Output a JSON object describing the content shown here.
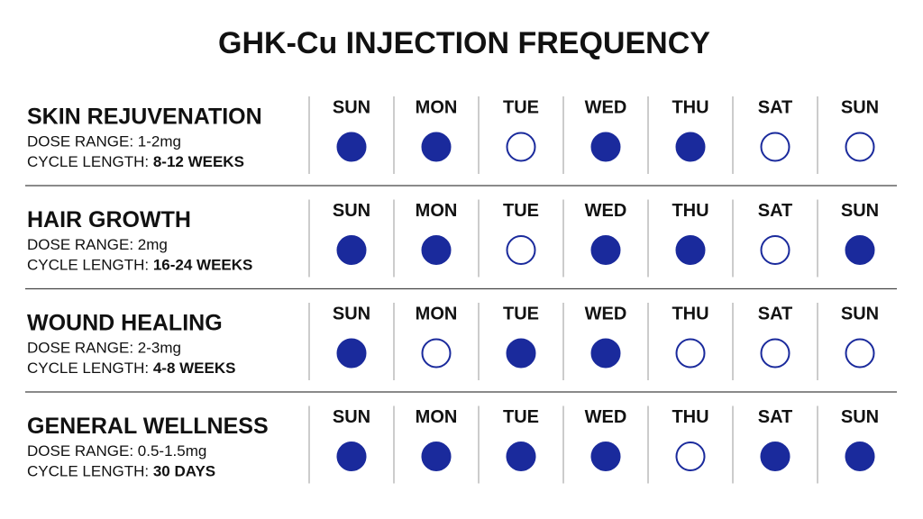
{
  "title": "GHK-Cu INJECTION FREQUENCY",
  "rows": [
    {
      "name": "SKIN REJUVENATION",
      "dose": "DOSE RANGE: 1-2mg",
      "cycle_label": "CYCLE LENGTH:",
      "cycle_value": "8-12 WEEKS",
      "days": [
        "SUN",
        "MON",
        "TUE",
        "WED",
        "THU",
        "SAT",
        "SUN"
      ],
      "injections": [
        true,
        true,
        false,
        true,
        true,
        false,
        false
      ]
    },
    {
      "name": "HAIR GROWTH",
      "dose": "DOSE RANGE: 2mg",
      "cycle_label": "CYCLE LENGTH:",
      "cycle_value": "16-24 WEEKS",
      "days": [
        "SUN",
        "MON",
        "TUE",
        "WED",
        "THU",
        "SAT",
        "SUN"
      ],
      "injections": [
        true,
        true,
        false,
        true,
        true,
        false,
        true
      ]
    },
    {
      "name": "WOUND HEALING",
      "dose": "DOSE RANGE: 2-3mg",
      "cycle_label": "CYCLE LENGTH:",
      "cycle_value": "4-8 WEEKS",
      "days": [
        "SUN",
        "MON",
        "TUE",
        "WED",
        "THU",
        "SAT",
        "SUN"
      ],
      "injections": [
        true,
        false,
        true,
        true,
        false,
        false,
        false
      ]
    },
    {
      "name": "GENERAL WELLNESS",
      "dose": "DOSE RANGE: 0.5-1.5mg",
      "cycle_label": "CYCLE LENGTH:",
      "cycle_value": "30 DAYS",
      "days": [
        "SUN",
        "MON",
        "TUE",
        "WED",
        "THU",
        "SAT",
        "SUN"
      ],
      "injections": [
        true,
        true,
        true,
        true,
        false,
        true,
        true
      ]
    }
  ],
  "dot_color": "#1a2a9c"
}
